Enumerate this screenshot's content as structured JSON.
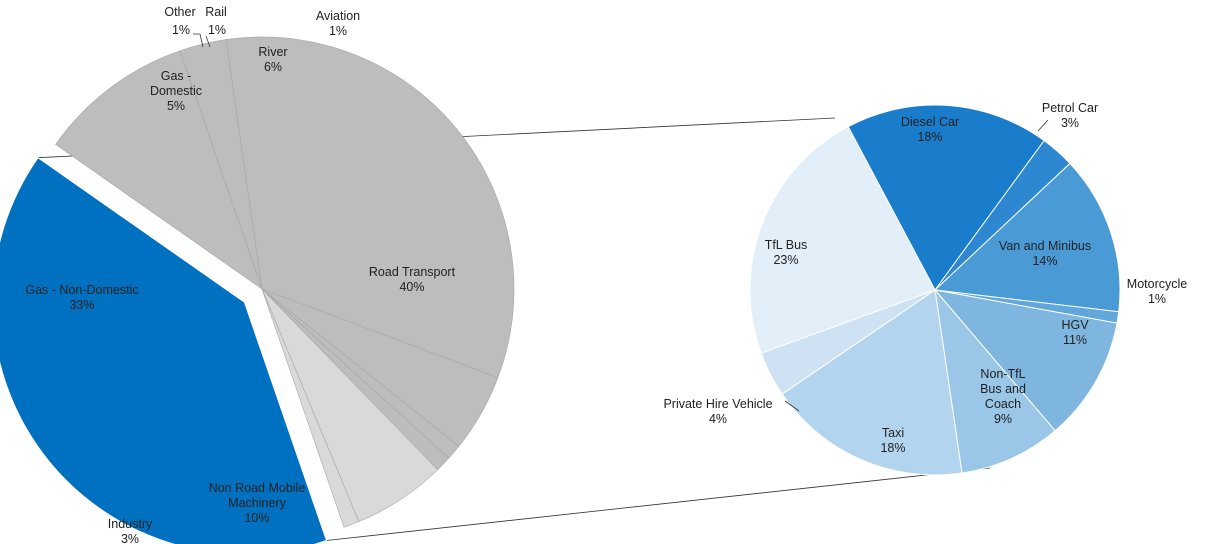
{
  "chart_data": {
    "type": "pie",
    "variant": "pie-of-pie",
    "title": "",
    "colors": {
      "main_fill": "#bdbdbd",
      "main_light": "#d9d9d9",
      "road_fill": "#0070c0",
      "slice_edge": "#a6a6a6"
    },
    "main": {
      "slices": [
        {
          "name": "Road Transport",
          "value": 40,
          "label": "40%",
          "color": "#0070c0",
          "exploded": true
        },
        {
          "name": "Non Road Mobile Machinery",
          "value": 10,
          "label": "10%",
          "color": "#bdbdbd"
        },
        {
          "name": "Industry",
          "value": 3,
          "label": "3%",
          "color": "#bdbdbd"
        },
        {
          "name": "Gas - Non-Domestic",
          "value": 33,
          "label": "33%",
          "color": "#bdbdbd"
        },
        {
          "name": "Gas - Domestic",
          "value": 5,
          "label": "5%",
          "color": "#bdbdbd"
        },
        {
          "name": "Other",
          "value": 1,
          "label": "1%",
          "color": "#bdbdbd"
        },
        {
          "name": "Rail",
          "value": 1,
          "label": "1%",
          "color": "#bdbdbd"
        },
        {
          "name": "River",
          "value": 6,
          "label": "6%",
          "color": "#d9d9d9"
        },
        {
          "name": "Aviation",
          "value": 1,
          "label": "1%",
          "color": "#d9d9d9"
        }
      ]
    },
    "secondary": {
      "breakdown_of": "Road Transport",
      "slices": [
        {
          "name": "Diesel Car",
          "value": 18,
          "label": "18%",
          "color": "#1a7dcc"
        },
        {
          "name": "Petrol Car",
          "value": 3,
          "label": "3%",
          "color": "#2e87d1"
        },
        {
          "name": "Van and Minibus",
          "value": 14,
          "label": "14%",
          "color": "#4a9ad6"
        },
        {
          "name": "Motorcycle",
          "value": 1,
          "label": "1%",
          "color": "#62a7dc"
        },
        {
          "name": "HGV",
          "value": 11,
          "label": "11%",
          "color": "#7eb6e0"
        },
        {
          "name": "Non-TfL Bus and Coach",
          "value": 9,
          "label": "9%",
          "color": "#9ac6e8"
        },
        {
          "name": "Taxi",
          "value": 18,
          "label": "18%",
          "color": "#b3d4ee"
        },
        {
          "name": "Private Hire Vehicle",
          "value": 4,
          "label": "4%",
          "color": "#cfe2f3"
        },
        {
          "name": "TfL Bus",
          "value": 23,
          "label": "23%",
          "color": "#e2eef8"
        }
      ]
    }
  }
}
